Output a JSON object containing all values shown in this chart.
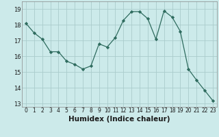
{
  "x": [
    0,
    1,
    2,
    3,
    4,
    5,
    6,
    7,
    8,
    9,
    10,
    11,
    12,
    13,
    14,
    15,
    16,
    17,
    18,
    19,
    20,
    21,
    22,
    23
  ],
  "y": [
    18.1,
    17.5,
    17.1,
    16.3,
    16.3,
    15.7,
    15.5,
    15.2,
    15.4,
    16.8,
    16.6,
    17.2,
    18.3,
    18.85,
    18.85,
    18.4,
    17.1,
    18.9,
    18.5,
    17.6,
    15.2,
    14.5,
    13.85,
    13.2
  ],
  "line_color": "#2e6b5e",
  "marker": "D",
  "marker_size": 2.2,
  "bg_color": "#cceaea",
  "grid_major_color": "#aacccc",
  "grid_minor_color": "#bbdddd",
  "xlabel": "Humidex (Indice chaleur)",
  "ylim": [
    12.8,
    19.5
  ],
  "xlim": [
    -0.5,
    23.5
  ],
  "yticks": [
    13,
    14,
    15,
    16,
    17,
    18,
    19
  ],
  "xticks": [
    0,
    1,
    2,
    3,
    4,
    5,
    6,
    7,
    8,
    9,
    10,
    11,
    12,
    13,
    14,
    15,
    16,
    17,
    18,
    19,
    20,
    21,
    22,
    23
  ],
  "tick_fontsize": 5.5,
  "xlabel_fontsize": 7.5
}
